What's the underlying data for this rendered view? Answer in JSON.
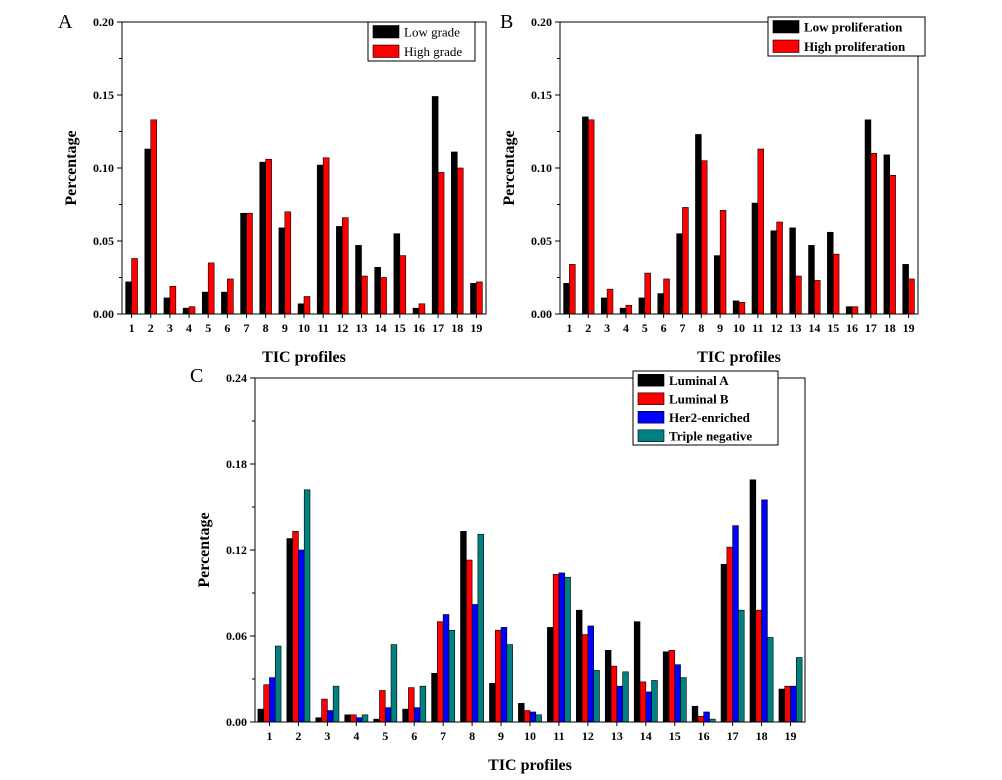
{
  "colors": {
    "black": "#000000",
    "red": "#ff0000",
    "blue": "#0000ff",
    "teal": "#008080"
  },
  "chart_data": [
    {
      "panel": "A",
      "type": "bar",
      "categories": [
        "1",
        "2",
        "3",
        "4",
        "5",
        "6",
        "7",
        "8",
        "9",
        "10",
        "11",
        "12",
        "13",
        "14",
        "15",
        "16",
        "17",
        "18",
        "19"
      ],
      "xlabel": "TIC profiles",
      "ylabel": "Percentage",
      "ylim": [
        0,
        0.2
      ],
      "yticks": [
        "0.00",
        "0.05",
        "0.10",
        "0.15",
        "0.20"
      ],
      "legend_placement": "top-right",
      "series": [
        {
          "name": "Low grade",
          "color": "#000000",
          "values": [
            0.022,
            0.113,
            0.011,
            0.004,
            0.015,
            0.015,
            0.069,
            0.104,
            0.059,
            0.007,
            0.102,
            0.06,
            0.047,
            0.032,
            0.055,
            0.004,
            0.149,
            0.111,
            0.021
          ]
        },
        {
          "name": "High grade",
          "color": "#ff0000",
          "values": [
            0.038,
            0.133,
            0.019,
            0.005,
            0.035,
            0.024,
            0.069,
            0.106,
            0.07,
            0.012,
            0.107,
            0.066,
            0.026,
            0.025,
            0.04,
            0.007,
            0.097,
            0.1,
            0.022
          ]
        }
      ]
    },
    {
      "panel": "B",
      "type": "bar",
      "categories": [
        "1",
        "2",
        "3",
        "4",
        "5",
        "6",
        "7",
        "8",
        "9",
        "10",
        "11",
        "12",
        "13",
        "14",
        "15",
        "16",
        "17",
        "18",
        "19"
      ],
      "xlabel": "TIC profiles",
      "ylabel": "Percentage",
      "ylim": [
        0,
        0.2
      ],
      "yticks": [
        "0.00",
        "0.05",
        "0.10",
        "0.15",
        "0.20"
      ],
      "legend_placement": "top-right",
      "series": [
        {
          "name": "Low proliferation",
          "color": "#000000",
          "values": [
            0.021,
            0.135,
            0.011,
            0.004,
            0.011,
            0.014,
            0.055,
            0.123,
            0.04,
            0.009,
            0.076,
            0.057,
            0.059,
            0.047,
            0.056,
            0.005,
            0.133,
            0.109,
            0.034
          ]
        },
        {
          "name": "High proliferation",
          "color": "#ff0000",
          "values": [
            0.034,
            0.133,
            0.017,
            0.006,
            0.028,
            0.024,
            0.073,
            0.105,
            0.071,
            0.008,
            0.113,
            0.063,
            0.026,
            0.023,
            0.041,
            0.005,
            0.11,
            0.095,
            0.024
          ]
        }
      ]
    },
    {
      "panel": "C",
      "type": "bar",
      "categories": [
        "1",
        "2",
        "3",
        "4",
        "5",
        "6",
        "7",
        "8",
        "9",
        "10",
        "11",
        "12",
        "13",
        "14",
        "15",
        "16",
        "17",
        "18",
        "19"
      ],
      "xlabel": "TIC profiles",
      "ylabel": "Percentage",
      "ylim": [
        0,
        0.24
      ],
      "yticks": [
        "0.00",
        "0.06",
        "0.12",
        "0.18",
        "0.24"
      ],
      "legend_placement": "top-right",
      "series": [
        {
          "name": "Luminal A",
          "color": "#000000",
          "values": [
            0.009,
            0.128,
            0.003,
            0.005,
            0.002,
            0.009,
            0.034,
            0.133,
            0.027,
            0.013,
            0.066,
            0.078,
            0.05,
            0.07,
            0.049,
            0.011,
            0.11,
            0.169,
            0.023
          ]
        },
        {
          "name": "Luminal B",
          "color": "#ff0000",
          "values": [
            0.026,
            0.133,
            0.016,
            0.005,
            0.022,
            0.024,
            0.07,
            0.113,
            0.064,
            0.008,
            0.103,
            0.061,
            0.039,
            0.028,
            0.05,
            0.004,
            0.122,
            0.078,
            0.025
          ]
        },
        {
          "name": "Her2-enriched",
          "color": "#0000ff",
          "values": [
            0.031,
            0.12,
            0.008,
            0.003,
            0.01,
            0.01,
            0.075,
            0.082,
            0.066,
            0.007,
            0.104,
            0.067,
            0.025,
            0.021,
            0.04,
            0.007,
            0.137,
            0.155,
            0.025
          ]
        },
        {
          "name": "Triple negative",
          "color": "#008080",
          "values": [
            0.053,
            0.162,
            0.025,
            0.005,
            0.054,
            0.025,
            0.064,
            0.131,
            0.054,
            0.005,
            0.101,
            0.036,
            0.035,
            0.029,
            0.031,
            0.002,
            0.078,
            0.059,
            0.045
          ]
        }
      ]
    }
  ]
}
